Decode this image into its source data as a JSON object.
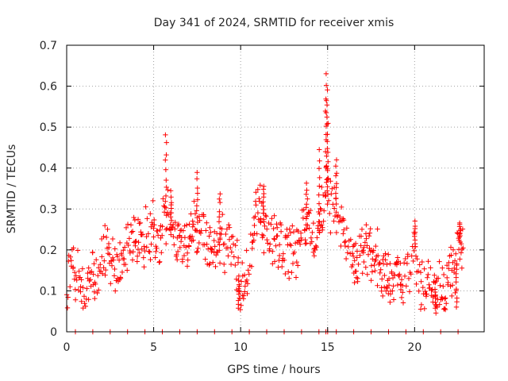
{
  "chart_data": {
    "type": "scatter",
    "title": "Day 341 of 2024, SRMTID for receiver xmis",
    "xlabel": "GPS time / hours",
    "ylabel": "SRMTID / TECUs",
    "xlim": [
      0,
      24
    ],
    "ylim": [
      0,
      0.7
    ],
    "x_ticks": [
      0,
      5,
      10,
      15,
      20
    ],
    "x_tick_labels": [
      "0",
      "5",
      "10",
      "15",
      "20"
    ],
    "y_ticks": [
      0,
      0.1,
      0.2,
      0.3,
      0.4,
      0.5,
      0.6,
      0.7
    ],
    "y_tick_labels": [
      "0",
      "0.1",
      "0.2",
      "0.3",
      "0.4",
      "0.5",
      "0.6",
      "0.7"
    ],
    "grid": true,
    "marker": "+",
    "series_color": "#ff0000",
    "series": [
      {
        "name": "SRMTID",
        "profile": [
          [
            0.0,
            0.12
          ],
          [
            0.4,
            0.15
          ],
          [
            0.8,
            0.12
          ],
          [
            1.0,
            0.09
          ],
          [
            1.3,
            0.11
          ],
          [
            1.6,
            0.14
          ],
          [
            2.0,
            0.18
          ],
          [
            2.3,
            0.2
          ],
          [
            2.6,
            0.17
          ],
          [
            3.0,
            0.15
          ],
          [
            3.3,
            0.2
          ],
          [
            3.6,
            0.22
          ],
          [
            4.0,
            0.22
          ],
          [
            4.3,
            0.21
          ],
          [
            4.6,
            0.24
          ],
          [
            5.0,
            0.25
          ],
          [
            5.3,
            0.23
          ],
          [
            5.6,
            0.27
          ],
          [
            5.8,
            0.3
          ],
          [
            6.0,
            0.25
          ],
          [
            6.5,
            0.22
          ],
          [
            7.0,
            0.22
          ],
          [
            7.3,
            0.27
          ],
          [
            7.6,
            0.24
          ],
          [
            8.0,
            0.23
          ],
          [
            8.5,
            0.2
          ],
          [
            9.0,
            0.22
          ],
          [
            9.5,
            0.2
          ],
          [
            9.8,
            0.17
          ],
          [
            10.0,
            0.1
          ],
          [
            10.4,
            0.14
          ],
          [
            10.8,
            0.25
          ],
          [
            11.0,
            0.3
          ],
          [
            11.5,
            0.24
          ],
          [
            12.0,
            0.22
          ],
          [
            12.5,
            0.2
          ],
          [
            13.0,
            0.19
          ],
          [
            13.5,
            0.24
          ],
          [
            14.0,
            0.26
          ],
          [
            14.4,
            0.22
          ],
          [
            14.8,
            0.32
          ],
          [
            15.0,
            0.35
          ],
          [
            15.3,
            0.28
          ],
          [
            15.6,
            0.3
          ],
          [
            16.0,
            0.22
          ],
          [
            16.5,
            0.18
          ],
          [
            17.0,
            0.19
          ],
          [
            17.5,
            0.2
          ],
          [
            18.0,
            0.17
          ],
          [
            18.5,
            0.13
          ],
          [
            19.0,
            0.12
          ],
          [
            19.5,
            0.12
          ],
          [
            19.9,
            0.14
          ],
          [
            20.0,
            0.2
          ],
          [
            20.3,
            0.12
          ],
          [
            20.6,
            0.1
          ],
          [
            21.0,
            0.11
          ],
          [
            21.4,
            0.1
          ],
          [
            21.8,
            0.11
          ],
          [
            22.0,
            0.17
          ],
          [
            22.3,
            0.14
          ],
          [
            22.5,
            0.2
          ],
          [
            22.6,
            0.22
          ]
        ],
        "peaks": [
          [
            5.7,
            0.48
          ],
          [
            6.0,
            0.34
          ],
          [
            7.5,
            0.385
          ],
          [
            8.8,
            0.34
          ],
          [
            11.3,
            0.36
          ],
          [
            13.8,
            0.36
          ],
          [
            14.5,
            0.44
          ],
          [
            14.9,
            0.635
          ],
          [
            14.95,
            0.59
          ],
          [
            15.0,
            0.55
          ],
          [
            15.5,
            0.42
          ],
          [
            20.0,
            0.27
          ],
          [
            22.6,
            0.265
          ],
          [
            22.4,
            0.06
          ],
          [
            9.9,
            0.06
          ],
          [
            21.2,
            0.05
          ]
        ],
        "zero_points_x": [
          0.5,
          1.5,
          2.5,
          3.5,
          4.5,
          5.5,
          6.5,
          7.5,
          8.5,
          9.5,
          10.5,
          11.5,
          12.5,
          13.5,
          14.5,
          14.9,
          15.0,
          15.5,
          16.5,
          17.5,
          18.5,
          19.5,
          20.5,
          21.5,
          22.5
        ],
        "data_end_hour": 22.8
      }
    ]
  }
}
